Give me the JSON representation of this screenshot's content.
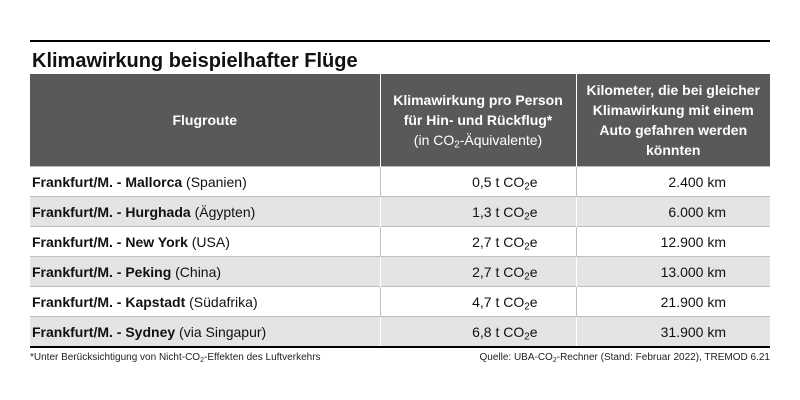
{
  "title": "Klimawirkung beispielhafter Flüge",
  "header": {
    "col_route": "Flugroute",
    "col_impact_line1": "Klimawirkung pro Person",
    "col_impact_line2": "für Hin- und Rückflug*",
    "col_impact_line3_pre": "(in CO",
    "col_impact_line3_sub": "2",
    "col_impact_line3_post": "-Äquivalente)",
    "col_km": "Kilometer, die bei gleicher Klimawirkung mit einem Auto gefahren werden könnten"
  },
  "unit": {
    "pre": "t CO",
    "sub": "2",
    "post": "e"
  },
  "rows": [
    {
      "origin": "Frankfurt/M. - ",
      "destination": "Mallorca",
      "country": "(Spanien)",
      "impact": "0,5",
      "km": "2.400 km"
    },
    {
      "origin": "Frankfurt/M. - ",
      "destination": "Hurghada",
      "country": "(Ägypten)",
      "impact": "1,3",
      "km": "6.000 km"
    },
    {
      "origin": "Frankfurt/M. - ",
      "destination": "New York",
      "country": "(USA)",
      "impact": "2,7",
      "km": "12.900 km"
    },
    {
      "origin": "Frankfurt/M. - ",
      "destination": "Peking",
      "country": "(China)",
      "impact": "2,7",
      "km": "13.000 km"
    },
    {
      "origin": "Frankfurt/M. - ",
      "destination": "Kapstadt",
      "country": "(Südafrika)",
      "impact": "4,7",
      "km": "21.900 km"
    },
    {
      "origin": "Frankfurt/M. - ",
      "destination": "Sydney",
      "country": "(via Singapur)",
      "impact": "6,8",
      "km": "31.900 km"
    }
  ],
  "footer": {
    "note_pre": "*Unter Berücksichtigung von Nicht-CO",
    "note_sub": "2",
    "note_post": "-Effekten des Luftverkehrs",
    "source_pre": "Quelle: UBA-CO",
    "source_sub": "2",
    "source_post": "-Rechner (Stand: Februar 2022), TREMOD 6.21"
  }
}
